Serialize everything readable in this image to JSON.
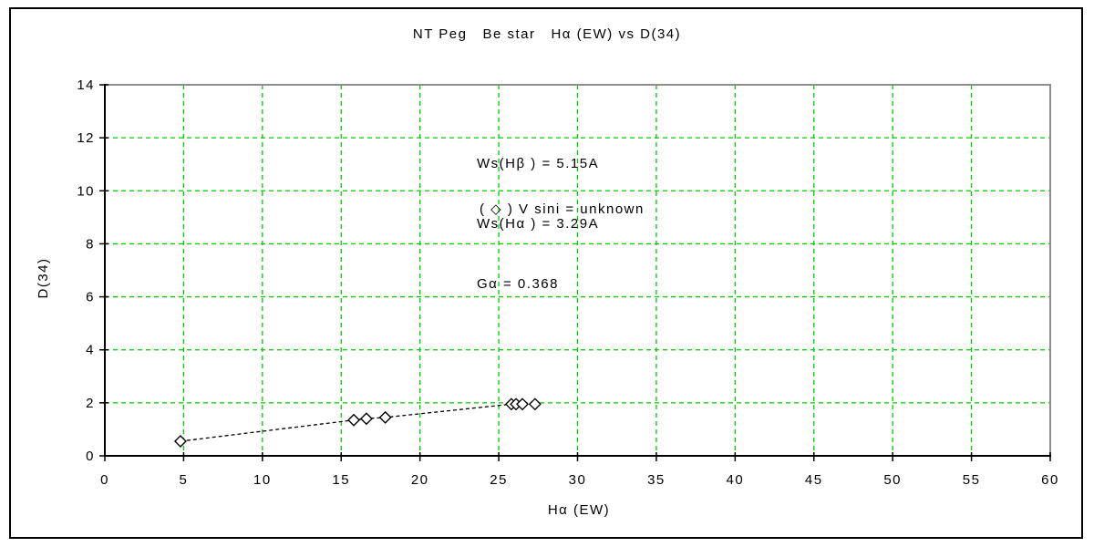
{
  "page": {
    "background": "#ffffff",
    "outer_border_color": "#000000"
  },
  "chart_data": {
    "type": "scatter",
    "title": "NT Peg   Be star   Hα (EW) vs D(34)",
    "xlabel": "Hα (EW)",
    "ylabel": "D(34)",
    "xlim": [
      0,
      60
    ],
    "ylim": [
      0,
      14
    ],
    "xticks": [
      0,
      5,
      10,
      15,
      20,
      25,
      30,
      35,
      40,
      45,
      50,
      55,
      60
    ],
    "yticks": [
      0,
      2,
      4,
      6,
      8,
      10,
      12,
      14
    ],
    "grid": {
      "show": true,
      "color": "#00CC00",
      "style": "dashed"
    },
    "frame_color": "#8E8E8E",
    "axis_color": "#000000",
    "series": [
      {
        "name": "V sini = unknown",
        "marker": "open-diamond",
        "marker_fill": "#ffffff",
        "marker_stroke": "#000000",
        "line_style": "dashed",
        "line_color": "#000000",
        "points": [
          [
            4.8,
            0.55
          ],
          [
            15.8,
            1.35
          ],
          [
            16.6,
            1.4
          ],
          [
            17.8,
            1.45
          ],
          [
            25.8,
            1.95
          ],
          [
            26.1,
            1.95
          ],
          [
            26.5,
            1.95
          ],
          [
            27.3,
            1.95
          ]
        ]
      }
    ],
    "annotations": [
      "Ws(Hβ ) = 5.15A",
      "Ws(Hα ) = 3.29A",
      "Gα = 0.368"
    ],
    "legend": "( ◇ ) V sini = unknown",
    "legend_position": "inside-upper-left"
  }
}
